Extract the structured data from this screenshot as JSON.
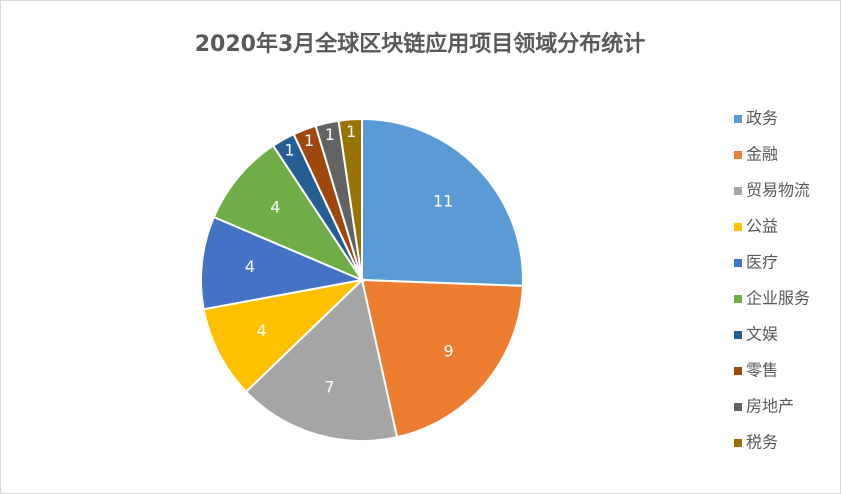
{
  "chart_data": {
    "type": "pie",
    "title": "2020年3月全球区块链应用项目领域分布统计",
    "categories": [
      "政务",
      "金融",
      "贸易物流",
      "公益",
      "医疗",
      "企业服务",
      "文娱",
      "零售",
      "房地产",
      "税务"
    ],
    "values": [
      11,
      9,
      7,
      4,
      4,
      4,
      1,
      1,
      1,
      1
    ],
    "colors": [
      "#5b9bd5",
      "#ed7d31",
      "#a5a5a5",
      "#ffc000",
      "#4472c4",
      "#70ad47",
      "#255e91",
      "#9e480e",
      "#636363",
      "#997300"
    ],
    "legend": "right"
  }
}
